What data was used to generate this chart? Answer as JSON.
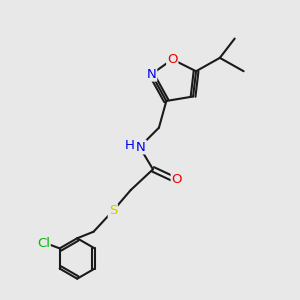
{
  "bg_color": "#e8e8e8",
  "bond_color": "#1a1a1a",
  "atom_colors": {
    "N": "#0000ee",
    "O": "#ee0000",
    "S": "#cccc00",
    "Cl": "#00bb00",
    "C": "#1a1a1a",
    "H": "#0000ee"
  },
  "figsize": [
    3.0,
    3.0
  ],
  "dpi": 100
}
